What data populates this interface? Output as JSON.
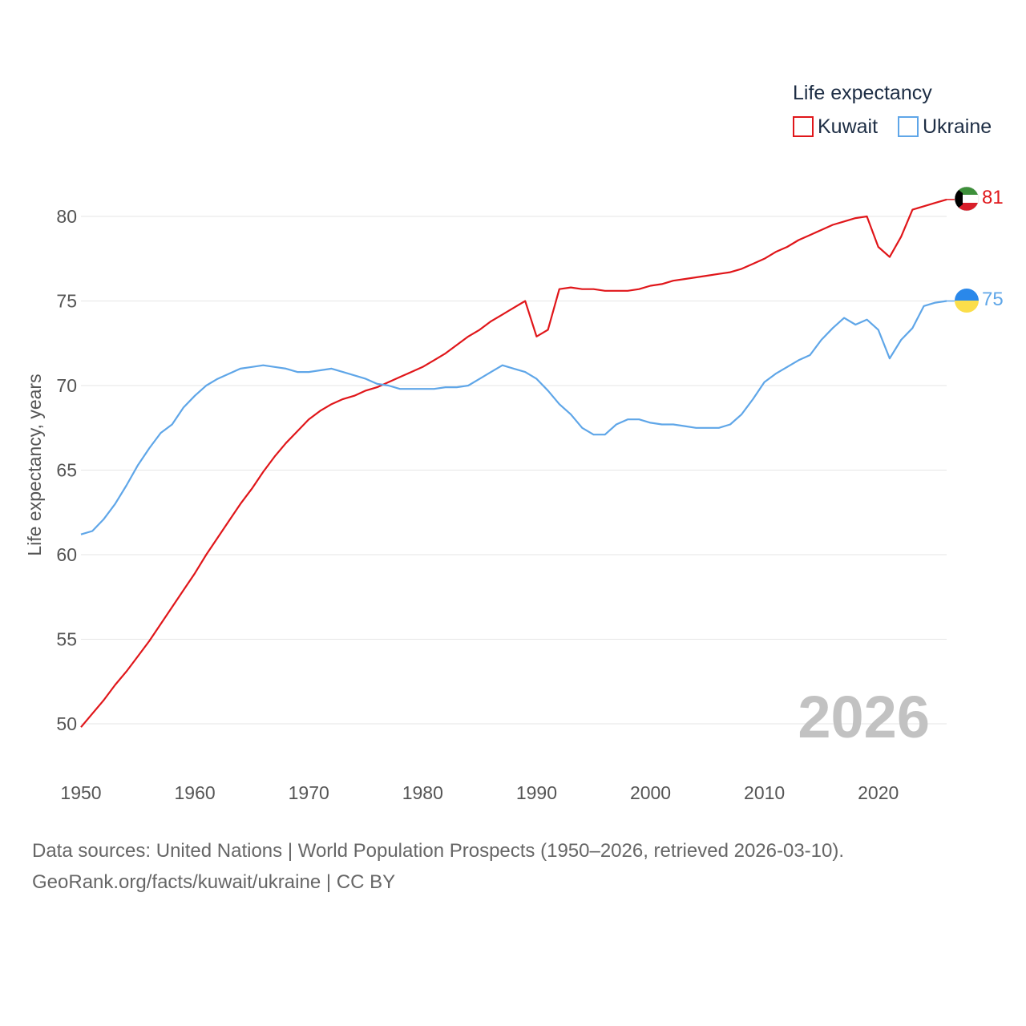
{
  "chart_data": {
    "type": "line",
    "ylabel": "Life expectancy, years",
    "xlim": [
      1950,
      2026
    ],
    "ylim": [
      48,
      83
    ],
    "x_ticks": [
      1950,
      1960,
      1970,
      1980,
      1990,
      2000,
      2010,
      2020
    ],
    "y_ticks": [
      50,
      55,
      60,
      65,
      70,
      75,
      80
    ],
    "legend": {
      "title": "Life expectancy",
      "position": "top-right"
    },
    "watermark_year": "2026",
    "x": [
      1950,
      1951,
      1952,
      1953,
      1954,
      1955,
      1956,
      1957,
      1958,
      1959,
      1960,
      1961,
      1962,
      1963,
      1964,
      1965,
      1966,
      1967,
      1968,
      1969,
      1970,
      1971,
      1972,
      1973,
      1974,
      1975,
      1976,
      1977,
      1978,
      1979,
      1980,
      1981,
      1982,
      1983,
      1984,
      1985,
      1986,
      1987,
      1988,
      1989,
      1990,
      1991,
      1992,
      1993,
      1994,
      1995,
      1996,
      1997,
      1998,
      1999,
      2000,
      2001,
      2002,
      2003,
      2004,
      2005,
      2006,
      2007,
      2008,
      2009,
      2010,
      2011,
      2012,
      2013,
      2014,
      2015,
      2016,
      2017,
      2018,
      2019,
      2020,
      2021,
      2022,
      2023,
      2024,
      2025,
      2026
    ],
    "series": [
      {
        "name": "Kuwait",
        "color": "#e0161a",
        "end_label": "81",
        "flag": "kuwait-flag-icon",
        "values": [
          49.8,
          50.6,
          51.4,
          52.3,
          53.1,
          54.0,
          54.9,
          55.9,
          56.9,
          57.9,
          58.9,
          60.0,
          61.0,
          62.0,
          63.0,
          63.9,
          64.9,
          65.8,
          66.6,
          67.3,
          68.0,
          68.5,
          68.9,
          69.2,
          69.4,
          69.7,
          69.9,
          70.2,
          70.5,
          70.8,
          71.1,
          71.5,
          71.9,
          72.4,
          72.9,
          73.3,
          73.8,
          74.2,
          74.6,
          75.0,
          72.9,
          73.3,
          75.7,
          75.8,
          75.7,
          75.7,
          75.6,
          75.6,
          75.6,
          75.7,
          75.9,
          76.0,
          76.2,
          76.3,
          76.4,
          76.5,
          76.6,
          76.7,
          76.9,
          77.2,
          77.5,
          77.9,
          78.2,
          78.6,
          78.9,
          79.2,
          79.5,
          79.7,
          79.9,
          80.0,
          78.2,
          77.6,
          78.8,
          80.4,
          80.6,
          80.8,
          81.0
        ]
      },
      {
        "name": "Ukraine",
        "color": "#5fa6e8",
        "end_label": "75",
        "flag": "ukraine-flag-icon",
        "values": [
          61.2,
          61.4,
          62.1,
          63.0,
          64.1,
          65.3,
          66.3,
          67.2,
          67.7,
          68.7,
          69.4,
          70.0,
          70.4,
          70.7,
          71.0,
          71.1,
          71.2,
          71.1,
          71.0,
          70.8,
          70.8,
          70.9,
          71.0,
          70.8,
          70.6,
          70.4,
          70.1,
          70.0,
          69.8,
          69.8,
          69.8,
          69.8,
          69.9,
          69.9,
          70.0,
          70.4,
          70.8,
          71.2,
          71.0,
          70.8,
          70.4,
          69.7,
          68.9,
          68.3,
          67.5,
          67.1,
          67.1,
          67.7,
          68.0,
          68.0,
          67.8,
          67.7,
          67.7,
          67.6,
          67.5,
          67.5,
          67.5,
          67.7,
          68.3,
          69.2,
          70.2,
          70.7,
          71.1,
          71.5,
          71.8,
          72.7,
          73.4,
          74.0,
          73.6,
          73.9,
          73.3,
          71.6,
          72.7,
          73.4,
          74.7,
          74.9,
          75.0
        ]
      }
    ]
  },
  "source": {
    "line1": "Data sources: United Nations | World Population Prospects (1950–2026, retrieved 2026-03-10).",
    "line2": "GeoRank.org/facts/kuwait/ukraine | CC BY"
  }
}
